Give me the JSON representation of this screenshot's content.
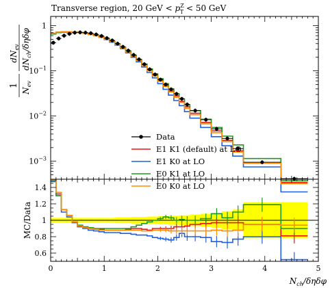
{
  "chart_data": [
    {
      "type": "line",
      "panel": "main",
      "title": "Transverse region, 20 GeV < p_T^Z < 50 GeV",
      "title_parts": {
        "pre": "Transverse region, 20 GeV < ",
        "sym": "p",
        "sup": "Z",
        "sub": "T",
        "post": " < 50 GeV"
      },
      "ylabel": "1/N_ev dN_ev/dN_ch/δηδφ",
      "ylabel_parts": {
        "frac1_num": "1",
        "frac1_den": "N",
        "frac1_den_sub": "ev",
        "frac2_num": "dN",
        "frac2_num_sub": "ev",
        "frac2_den": "dN",
        "frac2_den_sub": "ch",
        "frac2_den_tail": "/δηδφ"
      },
      "ylog": true,
      "ylim": [
        0.0004,
        1.6
      ],
      "xlim": [
        0,
        5
      ],
      "y_ticks": [
        {
          "v": 1,
          "label": "1"
        },
        {
          "v": 0.1,
          "label": "10",
          "exp": "−1"
        },
        {
          "v": 0.01,
          "label": "10",
          "exp": "−2"
        },
        {
          "v": 0.001,
          "label": "10",
          "exp": "−3"
        }
      ],
      "legend_position": "center",
      "bin_edges": [
        0.0,
        0.1,
        0.2,
        0.3,
        0.4,
        0.5,
        0.6,
        0.7,
        0.8,
        0.9,
        1.0,
        1.1,
        1.2,
        1.3,
        1.4,
        1.5,
        1.6,
        1.7,
        1.8,
        1.9,
        2.0,
        2.1,
        2.2,
        2.3,
        2.4,
        2.5,
        2.6,
        2.8,
        3.0,
        3.2,
        3.4,
        3.6,
        4.3,
        4.8
      ],
      "data": {
        "name": "Data",
        "x": [
          0.05,
          0.15,
          0.25,
          0.35,
          0.45,
          0.55,
          0.65,
          0.75,
          0.85,
          0.95,
          1.05,
          1.15,
          1.25,
          1.35,
          1.45,
          1.55,
          1.65,
          1.75,
          1.85,
          1.95,
          2.05,
          2.15,
          2.25,
          2.35,
          2.45,
          2.55,
          2.7,
          2.9,
          3.1,
          3.3,
          3.5,
          3.95,
          4.55
        ],
        "y": [
          0.42,
          0.52,
          0.6,
          0.66,
          0.7,
          0.71,
          0.7,
          0.68,
          0.64,
          0.59,
          0.53,
          0.47,
          0.4,
          0.34,
          0.28,
          0.225,
          0.18,
          0.14,
          0.108,
          0.083,
          0.064,
          0.05,
          0.039,
          0.031,
          0.024,
          0.018,
          0.0132,
          0.0083,
          0.0052,
          0.0032,
          0.0019,
          0.00095,
          0.00041
        ]
      },
      "series": [
        {
          "name": "E1 K1 (default) at LO",
          "color": "#ee1111",
          "values": [
            0.66,
            0.7,
            0.72,
            0.72,
            0.71,
            0.7,
            0.68,
            0.65,
            0.61,
            0.56,
            0.51,
            0.45,
            0.39,
            0.33,
            0.27,
            0.22,
            0.175,
            0.137,
            0.105,
            0.081,
            0.062,
            0.047,
            0.036,
            0.028,
            0.021,
            0.016,
            0.0115,
            0.0072,
            0.0047,
            0.0029,
            0.0017,
            0.0009,
            0.00034
          ]
        },
        {
          "name": "E1 K0 at LO",
          "color": "#1f5fe0",
          "values": [
            0.68,
            0.72,
            0.73,
            0.73,
            0.72,
            0.7,
            0.68,
            0.64,
            0.6,
            0.55,
            0.49,
            0.43,
            0.37,
            0.31,
            0.25,
            0.2,
            0.158,
            0.122,
            0.092,
            0.07,
            0.052,
            0.039,
            0.029,
            0.022,
            0.017,
            0.0125,
            0.009,
            0.0056,
            0.0035,
            0.0022,
            0.0013,
            0.00075,
            0.00021
          ]
        },
        {
          "name": "E0 K1 at LO",
          "color": "#1e9a1e",
          "values": [
            0.65,
            0.7,
            0.72,
            0.72,
            0.71,
            0.7,
            0.68,
            0.65,
            0.61,
            0.56,
            0.51,
            0.45,
            0.39,
            0.33,
            0.27,
            0.22,
            0.178,
            0.141,
            0.11,
            0.086,
            0.067,
            0.052,
            0.04,
            0.031,
            0.024,
            0.018,
            0.0132,
            0.0085,
            0.0056,
            0.0036,
            0.0023,
            0.00115,
            0.00037
          ]
        },
        {
          "name": "E0 K0 at LO",
          "color": "#ff8c00",
          "values": [
            0.67,
            0.72,
            0.73,
            0.73,
            0.72,
            0.7,
            0.68,
            0.64,
            0.6,
            0.55,
            0.5,
            0.44,
            0.38,
            0.32,
            0.26,
            0.21,
            0.168,
            0.131,
            0.1,
            0.077,
            0.059,
            0.045,
            0.034,
            0.026,
            0.02,
            0.0148,
            0.0107,
            0.0067,
            0.0043,
            0.0027,
            0.0016,
            0.0009,
            0.00032
          ]
        }
      ]
    },
    {
      "type": "line",
      "panel": "ratio",
      "ylabel": "MC/Data",
      "xlabel": "N_ch/δηδφ",
      "xlabel_parts": {
        "sym": "N",
        "sub": "ch",
        "tail": "/δηδφ"
      },
      "xlim": [
        0,
        5
      ],
      "ylim": [
        0.5,
        1.5
      ],
      "x_ticks": [
        0,
        1,
        2,
        3,
        4,
        5
      ],
      "y_ticks": [
        0.6,
        0.8,
        1,
        1.2,
        1.4
      ],
      "y_tick_labels": [
        "0.6",
        "0.8",
        "1",
        "1.2",
        "1.4"
      ],
      "band_color": "#ffff00",
      "band_halfwidth": [
        0.03,
        0.03,
        0.03,
        0.03,
        0.03,
        0.03,
        0.03,
        0.03,
        0.03,
        0.03,
        0.03,
        0.03,
        0.035,
        0.035,
        0.035,
        0.04,
        0.04,
        0.04,
        0.045,
        0.045,
        0.05,
        0.05,
        0.055,
        0.055,
        0.06,
        0.06,
        0.07,
        0.08,
        0.09,
        0.11,
        0.13,
        0.22,
        0.22
      ],
      "series": [
        {
          "name": "E1 K1 (default) at LO",
          "color": "#ee1111",
          "values": [
            1.49,
            1.32,
            1.13,
            1.06,
            0.98,
            0.93,
            0.91,
            0.9,
            0.89,
            0.89,
            0.88,
            0.88,
            0.88,
            0.88,
            0.89,
            0.9,
            0.9,
            0.89,
            0.88,
            0.9,
            0.9,
            0.9,
            0.9,
            0.92,
            0.92,
            0.93,
            0.95,
            0.96,
            0.97,
            0.97,
            0.97,
            0.95,
            0.81
          ]
        },
        {
          "name": "E1 K0 at LO",
          "color": "#1f5fe0",
          "values": [
            1.48,
            1.3,
            1.1,
            1.04,
            0.97,
            0.92,
            0.9,
            0.88,
            0.87,
            0.86,
            0.85,
            0.85,
            0.85,
            0.84,
            0.84,
            0.83,
            0.82,
            0.82,
            0.81,
            0.79,
            0.78,
            0.77,
            0.76,
            0.79,
            0.84,
            0.8,
            0.8,
            0.79,
            0.74,
            0.73,
            0.77,
            0.8,
            0.52
          ]
        },
        {
          "name": "E0 K1 at LO",
          "color": "#1e9a1e",
          "values": [
            1.47,
            1.3,
            1.13,
            1.06,
            0.98,
            0.94,
            0.92,
            0.91,
            0.9,
            0.9,
            0.9,
            0.9,
            0.9,
            0.9,
            0.9,
            0.92,
            0.94,
            0.96,
            0.98,
            1.0,
            1.02,
            1.04,
            1.03,
            1.0,
            1.01,
            1.0,
            1.0,
            1.02,
            1.08,
            1.03,
            1.1,
            1.19,
            0.9
          ]
        },
        {
          "name": "E0 K0 at LO",
          "color": "#ff8c00",
          "values": [
            1.5,
            1.34,
            1.13,
            1.06,
            0.98,
            0.93,
            0.91,
            0.9,
            0.89,
            0.88,
            0.88,
            0.88,
            0.88,
            0.88,
            0.88,
            0.88,
            0.88,
            0.87,
            0.87,
            0.88,
            0.88,
            0.88,
            0.87,
            0.87,
            0.87,
            0.87,
            0.87,
            0.87,
            0.88,
            0.87,
            0.88,
            0.95,
            0.94
          ]
        }
      ]
    }
  ]
}
